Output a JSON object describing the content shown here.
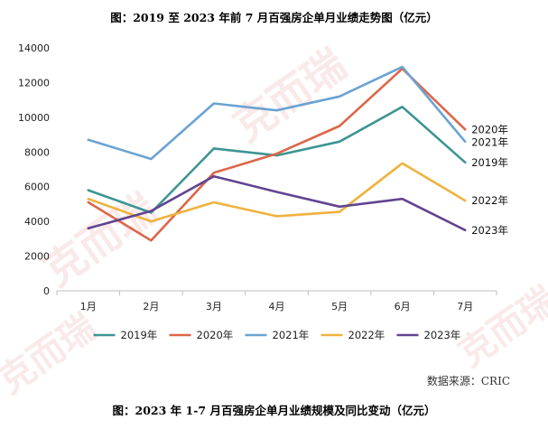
{
  "title_top": "图：2019 至 2023 年前 7 月百强房企单月业绩走势图（亿元）",
  "title_bottom": "图：2023 年 1-7 月百强房企单月业绩规模及同比变动（亿元）",
  "source": "数据来源：CRIC",
  "watermark_text": "克而瑞",
  "chart_data": {
    "type": "line",
    "title": "图：2019 至 2023 年前 7 月百强房企单月业绩走势图（亿元）",
    "xlabel": "",
    "ylabel": "",
    "categories": [
      "1月",
      "2月",
      "3月",
      "4月",
      "5月",
      "6月",
      "7月"
    ],
    "ylim": [
      0,
      14000
    ],
    "yticks": [
      0,
      2000,
      4000,
      6000,
      8000,
      10000,
      12000,
      14000
    ],
    "legend": "bottom",
    "grid": false,
    "series": [
      {
        "name": "2019年",
        "color": "#3b9593",
        "values": [
          5800,
          4500,
          8200,
          7800,
          8600,
          10600,
          7400
        ]
      },
      {
        "name": "2020年",
        "color": "#dd6649",
        "values": [
          5100,
          2900,
          6800,
          7900,
          9500,
          12800,
          9300
        ]
      },
      {
        "name": "2021年",
        "color": "#6aa3d2",
        "values": [
          8700,
          7600,
          10800,
          10400,
          11200,
          12900,
          8600
        ]
      },
      {
        "name": "2022年",
        "color": "#efb23e",
        "values": [
          5300,
          4000,
          5100,
          4300,
          4550,
          7350,
          5200
        ]
      },
      {
        "name": "2023年",
        "color": "#614490",
        "values": [
          3600,
          4600,
          6600,
          5700,
          4850,
          5300,
          3500
        ]
      }
    ]
  }
}
